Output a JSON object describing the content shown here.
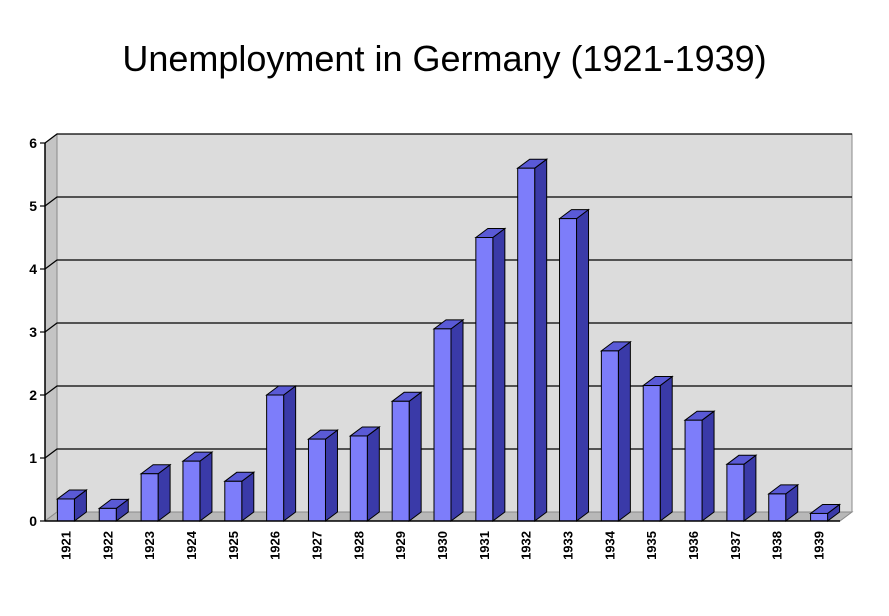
{
  "chart_data": {
    "type": "bar",
    "title": "Unemployment in Germany (1921-1939)",
    "xlabel": "",
    "ylabel": "",
    "ylim": [
      0,
      6
    ],
    "yticks": [
      "0",
      "1",
      "2",
      "3",
      "4",
      "5",
      "6"
    ],
    "categories": [
      "1921",
      "1922",
      "1923",
      "1924",
      "1925",
      "1926",
      "1927",
      "1928",
      "1929",
      "1930",
      "1931",
      "1932",
      "1933",
      "1934",
      "1935",
      "1936",
      "1937",
      "1938",
      "1939"
    ],
    "values": [
      0.35,
      0.2,
      0.75,
      0.95,
      0.63,
      2.0,
      1.3,
      1.35,
      1.9,
      3.05,
      4.5,
      5.6,
      4.8,
      2.7,
      2.15,
      1.6,
      0.9,
      0.43,
      0.12
    ],
    "grid": true,
    "legend": "none",
    "colors": {
      "bar_front": "#7d7dfa",
      "bar_side": "#3a3aa8",
      "bar_top": "#5a5ad6",
      "bar_outline": "#000000",
      "plot_background": "#dcdcdc",
      "grid": "#000000"
    }
  }
}
